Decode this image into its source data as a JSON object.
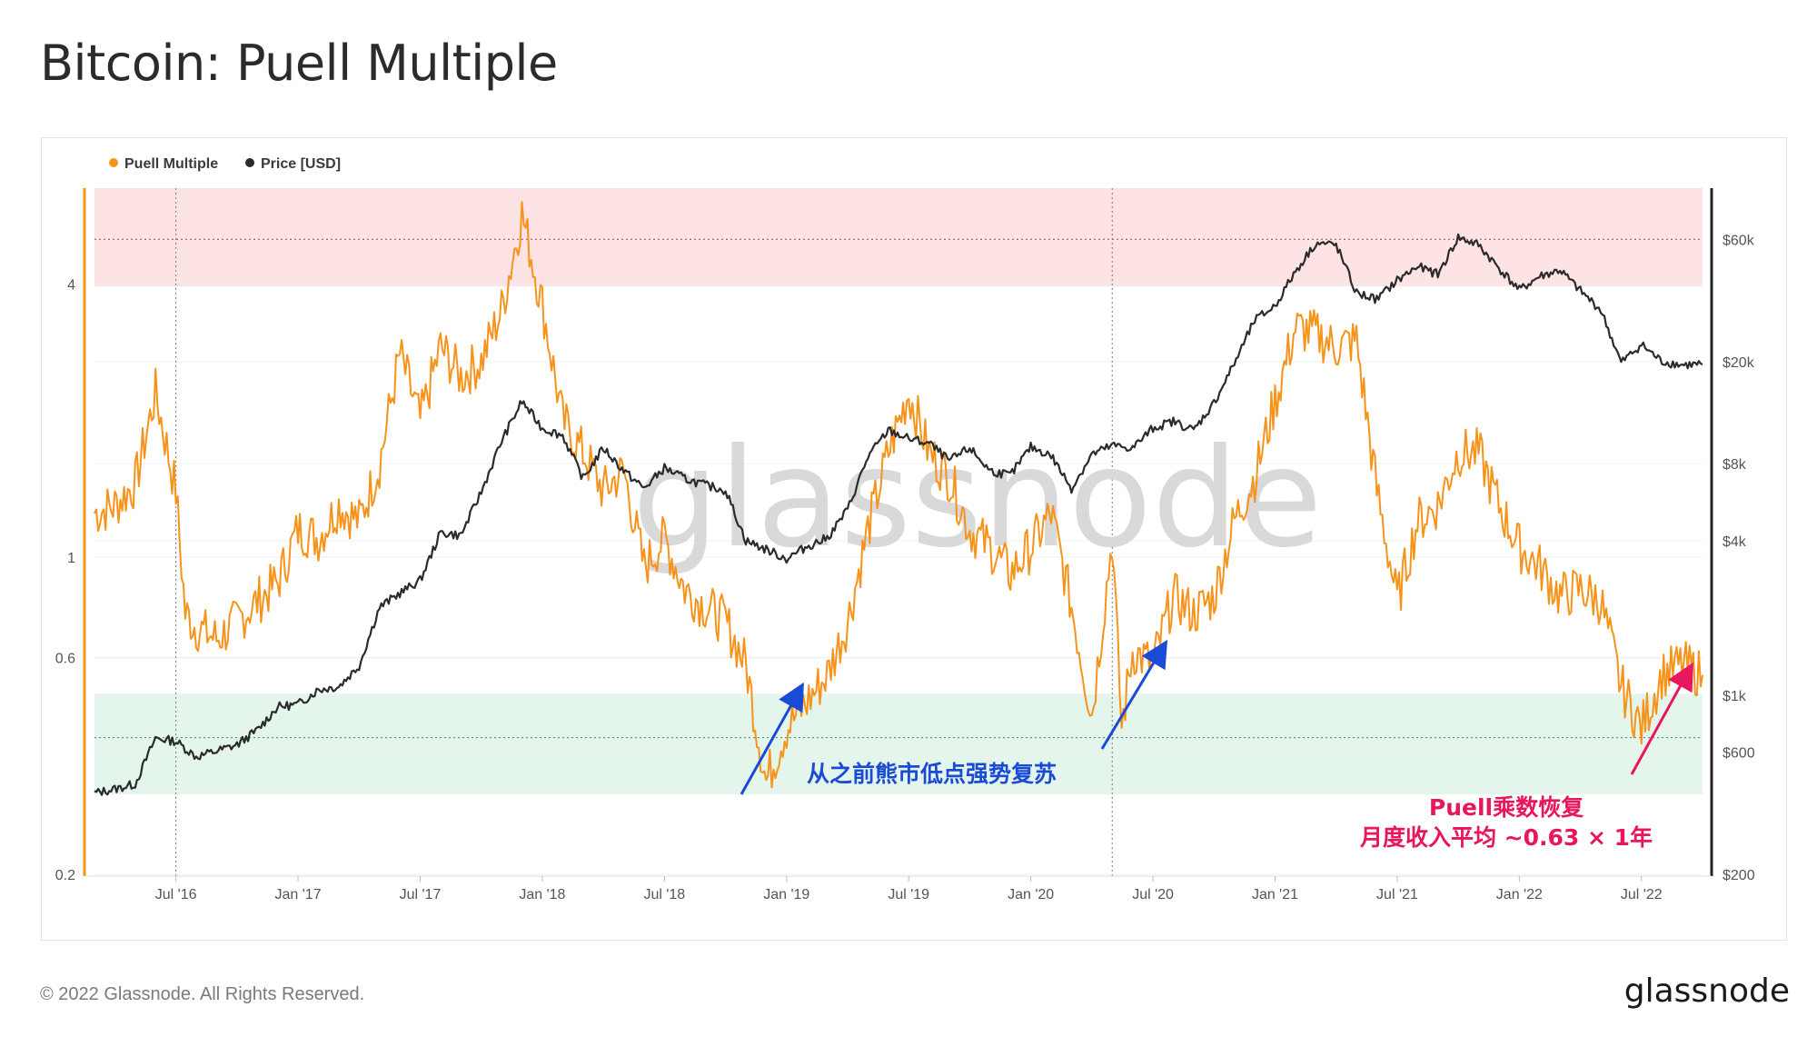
{
  "title": "Bitcoin: Puell Multiple",
  "footer": {
    "copyright": "© 2022 Glassnode. All Rights Reserved.",
    "brand": "glassnode"
  },
  "watermark": "glassnode",
  "annotations": {
    "blue": "从之前熊市低点强势复苏",
    "red_line1": "Puell乘数恢复",
    "red_line2": "月度收入平均 ~0.63 × 1年"
  },
  "colors": {
    "puell": "#f7931a",
    "price": "#2b2b2b",
    "red_zone": "#fde3e4",
    "green_zone": "#e4f5ec",
    "blue_annotation": "#1a4bd6",
    "red_annotation": "#e8175d"
  },
  "chart_data": {
    "type": "line",
    "legend": [
      {
        "name": "Puell Multiple",
        "color": "#f7931a"
      },
      {
        "name": "Price [USD]",
        "color": "#2b2b2b"
      }
    ],
    "legend_position": "top-left",
    "x_range": [
      "2016-03",
      "2022-10"
    ],
    "x_ticks": [
      "Jul '16",
      "Jan '17",
      "Jul '17",
      "Jan '18",
      "Jul '18",
      "Jan '19",
      "Jul '19",
      "Jan '20",
      "Jul '20",
      "Jan '21",
      "Jul '21",
      "Jan '22",
      "Jul '22"
    ],
    "y_left": {
      "scale": "log",
      "ylim": [
        0.2,
        6.5
      ],
      "ticks": [
        {
          "value": 0.2,
          "label": "0.2"
        },
        {
          "value": 0.6,
          "label": "0.6"
        },
        {
          "value": 1,
          "label": "1"
        },
        {
          "value": 4,
          "label": "4"
        }
      ]
    },
    "y_right": {
      "scale": "log",
      "ylim": [
        200,
        95000
      ],
      "ticks": [
        {
          "value": 200,
          "label": "$200"
        },
        {
          "value": 600,
          "label": "$600"
        },
        {
          "value": 1000,
          "label": "$1k"
        },
        {
          "value": 4000,
          "label": "$4k"
        },
        {
          "value": 8000,
          "label": "$8k"
        },
        {
          "value": 20000,
          "label": "$20k"
        },
        {
          "value": 60000,
          "label": "$60k"
        }
      ]
    },
    "zones": [
      {
        "name": "overheated",
        "from": 3.95,
        "to": 6.5,
        "color": "#fde3e4"
      },
      {
        "name": "undervalued",
        "from": 0.3,
        "to": 0.5,
        "color": "#e4f5ec"
      }
    ],
    "reference_lines": {
      "left_value": 0.4,
      "right_value": 60000
    },
    "halvings": [
      "2016-07",
      "2020-05"
    ],
    "series": [
      {
        "name": "Puell Multiple",
        "axis": "left",
        "points": [
          [
            "2016-03",
            1.25
          ],
          [
            "2016-04",
            1.3
          ],
          [
            "2016-05",
            1.45
          ],
          [
            "2016-06",
            2.3
          ],
          [
            "2016-07",
            1.4
          ],
          [
            "2016-07-15",
            0.75
          ],
          [
            "2016-08",
            0.7
          ],
          [
            "2016-09",
            0.66
          ],
          [
            "2016-10",
            0.72
          ],
          [
            "2016-11",
            0.8
          ],
          [
            "2016-12",
            0.88
          ],
          [
            "2017-01",
            1.15
          ],
          [
            "2017-02",
            1.1
          ],
          [
            "2017-03",
            1.3
          ],
          [
            "2017-04",
            1.2
          ],
          [
            "2017-05",
            1.6
          ],
          [
            "2017-06",
            2.8
          ],
          [
            "2017-07",
            2.0
          ],
          [
            "2017-08",
            2.9
          ],
          [
            "2017-09",
            2.5
          ],
          [
            "2017-10",
            2.7
          ],
          [
            "2017-11",
            3.5
          ],
          [
            "2017-12",
            5.7
          ],
          [
            "2018-01",
            3.6
          ],
          [
            "2018-02",
            2.0
          ],
          [
            "2018-03",
            1.7
          ],
          [
            "2018-04",
            1.4
          ],
          [
            "2018-05",
            1.55
          ],
          [
            "2018-06",
            0.95
          ],
          [
            "2018-07",
            1.1
          ],
          [
            "2018-08",
            0.85
          ],
          [
            "2018-09",
            0.78
          ],
          [
            "2018-10",
            0.72
          ],
          [
            "2018-11",
            0.58
          ],
          [
            "2018-12",
            0.32
          ],
          [
            "2019-01",
            0.42
          ],
          [
            "2019-02",
            0.48
          ],
          [
            "2019-03",
            0.55
          ],
          [
            "2019-04",
            0.72
          ],
          [
            "2019-05",
            1.15
          ],
          [
            "2019-06",
            1.7
          ],
          [
            "2019-07",
            2.3
          ],
          [
            "2019-08",
            1.7
          ],
          [
            "2019-09",
            1.5
          ],
          [
            "2019-10",
            1.15
          ],
          [
            "2019-11",
            1.05
          ],
          [
            "2019-12",
            0.92
          ],
          [
            "2020-01",
            1.05
          ],
          [
            "2020-02",
            1.25
          ],
          [
            "2020-03",
            0.78
          ],
          [
            "2020-04",
            0.45
          ],
          [
            "2020-05",
            1.1
          ],
          [
            "2020-05-15",
            0.42
          ],
          [
            "2020-06",
            0.62
          ],
          [
            "2020-07",
            0.58
          ],
          [
            "2020-08",
            0.82
          ],
          [
            "2020-09",
            0.75
          ],
          [
            "2020-10",
            0.82
          ],
          [
            "2020-11",
            1.2
          ],
          [
            "2020-12",
            1.5
          ],
          [
            "2021-01",
            2.2
          ],
          [
            "2021-02",
            3.2
          ],
          [
            "2021-03",
            3.1
          ],
          [
            "2021-04",
            2.9
          ],
          [
            "2021-05",
            3.0
          ],
          [
            "2021-06",
            1.4
          ],
          [
            "2021-07",
            0.8
          ],
          [
            "2021-08",
            1.2
          ],
          [
            "2021-09",
            1.3
          ],
          [
            "2021-10",
            1.7
          ],
          [
            "2021-11",
            1.7
          ],
          [
            "2021-12",
            1.3
          ],
          [
            "2022-01",
            1.05
          ],
          [
            "2022-02",
            0.95
          ],
          [
            "2022-03",
            0.82
          ],
          [
            "2022-04",
            0.85
          ],
          [
            "2022-05",
            0.8
          ],
          [
            "2022-06",
            0.52
          ],
          [
            "2022-07",
            0.42
          ],
          [
            "2022-08",
            0.55
          ],
          [
            "2022-09",
            0.58
          ],
          [
            "2022-10",
            0.55
          ]
        ]
      },
      {
        "name": "Price [USD]",
        "axis": "right",
        "points": [
          [
            "2016-03",
            415
          ],
          [
            "2016-04",
            430
          ],
          [
            "2016-05",
            450
          ],
          [
            "2016-06",
            680
          ],
          [
            "2016-07",
            660
          ],
          [
            "2016-08",
            575
          ],
          [
            "2016-09",
            605
          ],
          [
            "2016-10",
            640
          ],
          [
            "2016-11",
            730
          ],
          [
            "2016-12",
            900
          ],
          [
            "2017-01",
            920
          ],
          [
            "2017-02",
            1050
          ],
          [
            "2017-03",
            1080
          ],
          [
            "2017-04",
            1300
          ],
          [
            "2017-05",
            2200
          ],
          [
            "2017-06",
            2500
          ],
          [
            "2017-07",
            2800
          ],
          [
            "2017-08",
            4300
          ],
          [
            "2017-09",
            4200
          ],
          [
            "2017-10",
            6200
          ],
          [
            "2017-11",
            9800
          ],
          [
            "2017-12",
            14000
          ],
          [
            "2018-01",
            11000
          ],
          [
            "2018-02",
            10300
          ],
          [
            "2018-03",
            7000
          ],
          [
            "2018-04",
            9200
          ],
          [
            "2018-05",
            7500
          ],
          [
            "2018-06",
            6400
          ],
          [
            "2018-07",
            7700
          ],
          [
            "2018-08",
            7000
          ],
          [
            "2018-09",
            6600
          ],
          [
            "2018-10",
            6300
          ],
          [
            "2018-11",
            4000
          ],
          [
            "2018-12",
            3700
          ],
          [
            "2019-01",
            3400
          ],
          [
            "2019-02",
            3800
          ],
          [
            "2019-03",
            4100
          ],
          [
            "2019-04",
            5300
          ],
          [
            "2019-05",
            8500
          ],
          [
            "2019-06",
            10800
          ],
          [
            "2019-07",
            10000
          ],
          [
            "2019-08",
            9600
          ],
          [
            "2019-09",
            8200
          ],
          [
            "2019-10",
            9200
          ],
          [
            "2019-11",
            7500
          ],
          [
            "2019-12",
            7200
          ],
          [
            "2020-01",
            9300
          ],
          [
            "2020-02",
            8600
          ],
          [
            "2020-03",
            6400
          ],
          [
            "2020-04",
            8700
          ],
          [
            "2020-05",
            9400
          ],
          [
            "2020-06",
            9200
          ],
          [
            "2020-07",
            11000
          ],
          [
            "2020-08",
            11700
          ],
          [
            "2020-09",
            10800
          ],
          [
            "2020-10",
            13800
          ],
          [
            "2020-11",
            19700
          ],
          [
            "2020-12",
            29000
          ],
          [
            "2021-01",
            33000
          ],
          [
            "2021-02",
            45000
          ],
          [
            "2021-03",
            58000
          ],
          [
            "2021-04",
            57000
          ],
          [
            "2021-05",
            37000
          ],
          [
            "2021-06",
            35000
          ],
          [
            "2021-07",
            41500
          ],
          [
            "2021-08",
            47000
          ],
          [
            "2021-09",
            43800
          ],
          [
            "2021-10",
            61000
          ],
          [
            "2021-11",
            57000
          ],
          [
            "2021-12",
            46300
          ],
          [
            "2022-01",
            38000
          ],
          [
            "2022-02",
            43000
          ],
          [
            "2022-03",
            45500
          ],
          [
            "2022-04",
            37700
          ],
          [
            "2022-05",
            31800
          ],
          [
            "2022-06",
            19800
          ],
          [
            "2022-07",
            23300
          ],
          [
            "2022-08",
            20000
          ],
          [
            "2022-09",
            19400
          ],
          [
            "2022-10",
            19500
          ]
        ]
      }
    ]
  }
}
